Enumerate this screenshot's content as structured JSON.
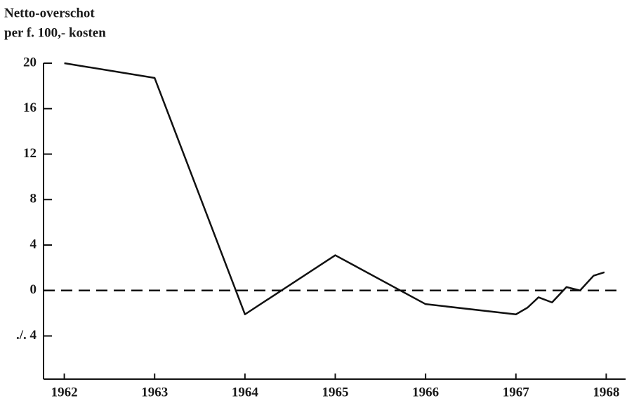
{
  "chart_data": {
    "type": "line",
    "ylabel": [
      "Netto-overschot",
      "per f. 100,- kosten"
    ],
    "x": [
      1962,
      1963,
      1964,
      1965,
      1966,
      1967,
      1967.13,
      1967.25,
      1967.4,
      1967.56,
      1967.71,
      1967.86,
      1967.98
    ],
    "values": [
      20,
      18.7,
      -2.1,
      3.1,
      -1.2,
      -2.1,
      -1.5,
      -0.6,
      -1.05,
      0.3,
      0,
      1.3,
      1.6
    ],
    "color": "#111111",
    "reference_line": 0,
    "xlim": [
      1961.77,
      1968.23
    ],
    "ylim": [
      -7.8,
      20
    ],
    "xticks": [
      1962,
      1963,
      1964,
      1965,
      1966,
      1967,
      1968
    ],
    "yticks": [
      {
        "value": -4,
        "label": "./. 4"
      },
      0,
      4,
      8,
      12,
      16,
      20
    ]
  }
}
